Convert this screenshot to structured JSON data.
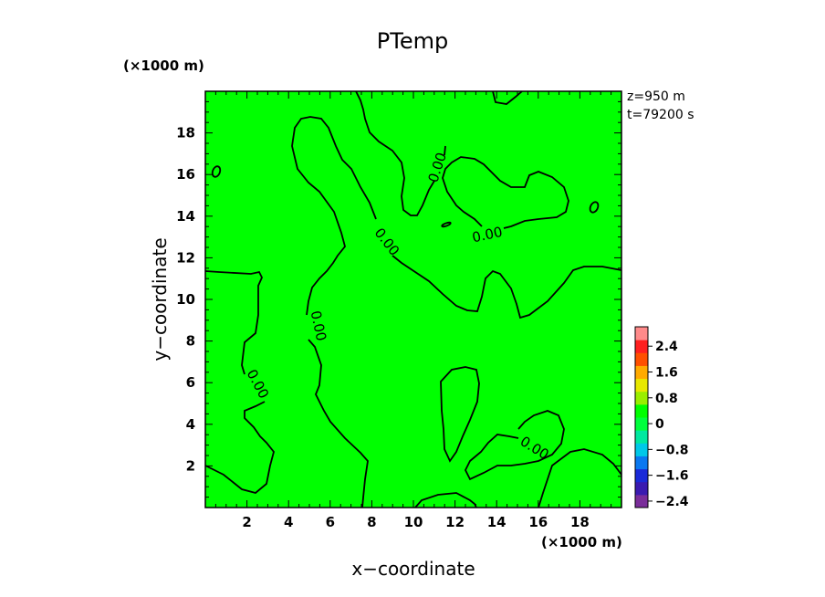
{
  "chart_data": {
    "type": "heatmap",
    "title": "PTemp",
    "xlabel": "x−coordinate",
    "ylabel": "y−coordinate",
    "x_unit": "(×1000 m)",
    "y_unit": "(×1000 m)",
    "info_z": "z=950 m",
    "info_t": "t=79200 s",
    "xlim": [
      0,
      20
    ],
    "ylim": [
      0,
      20
    ],
    "xticks": [
      "2",
      "4",
      "6",
      "8",
      "10",
      "12",
      "14",
      "16",
      "18"
    ],
    "yticks": [
      "2",
      "4",
      "6",
      "8",
      "10",
      "12",
      "14",
      "16",
      "18"
    ],
    "field_color": "#00ff00",
    "contour_level_label": "0.00",
    "contour_level_value": 0.0,
    "colorbar": {
      "labels": [
        "2.4",
        "1.6",
        "0.8",
        "0",
        "−0.8",
        "−1.6",
        "−2.4"
      ],
      "colors": [
        "#7a2d9a",
        "#3a1ab0",
        "#1a2ad8",
        "#0a78f0",
        "#00c8e8",
        "#00e8a0",
        "#00ff3c",
        "#00ff00",
        "#9aee00",
        "#e8e800",
        "#ffaa00",
        "#ff5000",
        "#ff2020",
        "#ff8a8a"
      ]
    }
  }
}
